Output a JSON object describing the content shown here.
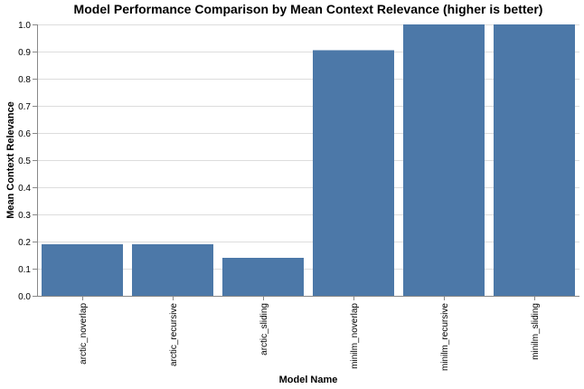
{
  "chart_data": {
    "type": "bar",
    "title": "Model Performance Comparison by Mean Context Relevance (higher is better)",
    "xlabel": "Model Name",
    "ylabel": "Mean Context Relevance",
    "categories": [
      "arctic_noverlap",
      "arctic_recursive",
      "arctic_sliding",
      "minilm_noverlap",
      "minilm_recursive",
      "minilm_sliding"
    ],
    "values": [
      0.19,
      0.19,
      0.14,
      0.905,
      1.0,
      1.0
    ],
    "ylim": [
      0,
      1.0
    ],
    "yticks": [
      "0.0",
      "0.1",
      "0.2",
      "0.3",
      "0.4",
      "0.5",
      "0.6",
      "0.7",
      "0.8",
      "0.9",
      "1.0"
    ],
    "grid": true,
    "bar_color": "#4c78a8"
  }
}
